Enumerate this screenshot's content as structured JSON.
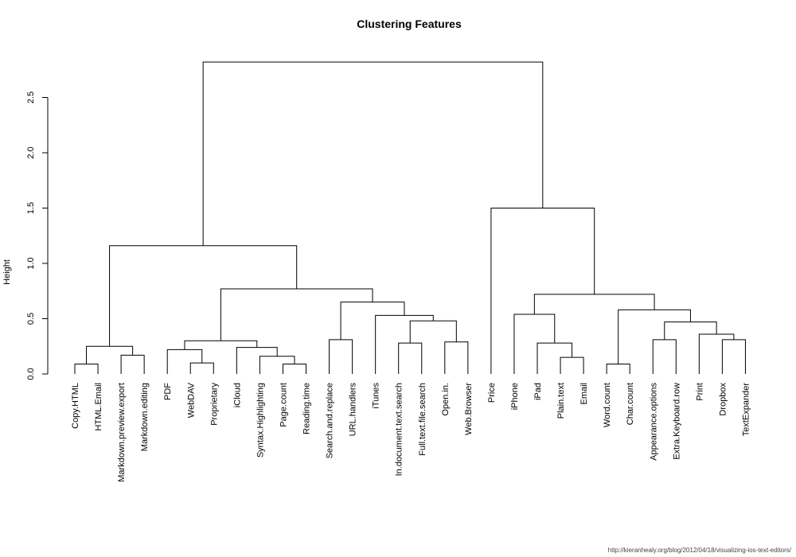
{
  "chart_data": {
    "type": "dendrogram",
    "title": "Clustering Features",
    "ylabel": "Height",
    "ylim": [
      0,
      2.85
    ],
    "yticks": [
      "0.0",
      "0.5",
      "1.0",
      "1.5",
      "2.0",
      "2.5"
    ],
    "leaves": [
      "Copy.HTML",
      "HTML.Email",
      "Markdown.preview.export",
      "Markdown.editing",
      "PDF",
      "WebDAV",
      "Proprietary",
      "iCloud",
      "Syntax.Highlighting",
      "Page.count",
      "Reading.time",
      "Search.and.replace",
      "URL.handlers",
      "iTunes",
      "In.document.text.search",
      "Full.text.file.search",
      "Open.in.",
      "Web.Browser",
      "Price",
      "iPhone",
      "iPad",
      "Plain.text",
      "Email",
      "Word.count",
      "Char.count",
      "Appearance.options",
      "Extra.Keyboard.row",
      "Print",
      "Dropbox",
      "TextExpander"
    ],
    "merges": [
      {
        "a": [
          "leaf",
          0
        ],
        "b": [
          "leaf",
          1
        ],
        "height": 0.09
      },
      {
        "a": [
          "leaf",
          2
        ],
        "b": [
          "leaf",
          3
        ],
        "height": 0.17
      },
      {
        "a": [
          "node",
          0
        ],
        "b": [
          "node",
          1
        ],
        "height": 0.25
      },
      {
        "a": [
          "leaf",
          5
        ],
        "b": [
          "leaf",
          6
        ],
        "height": 0.1
      },
      {
        "a": [
          "leaf",
          4
        ],
        "b": [
          "node",
          3
        ],
        "height": 0.22
      },
      {
        "a": [
          "leaf",
          9
        ],
        "b": [
          "leaf",
          10
        ],
        "height": 0.09
      },
      {
        "a": [
          "leaf",
          8
        ],
        "b": [
          "node",
          5
        ],
        "height": 0.16
      },
      {
        "a": [
          "leaf",
          7
        ],
        "b": [
          "node",
          6
        ],
        "height": 0.24
      },
      {
        "a": [
          "node",
          4
        ],
        "b": [
          "node",
          7
        ],
        "height": 0.3
      },
      {
        "a": [
          "leaf",
          11
        ],
        "b": [
          "leaf",
          12
        ],
        "height": 0.31
      },
      {
        "a": [
          "leaf",
          14
        ],
        "b": [
          "leaf",
          15
        ],
        "height": 0.28
      },
      {
        "a": [
          "leaf",
          16
        ],
        "b": [
          "leaf",
          17
        ],
        "height": 0.29
      },
      {
        "a": [
          "node",
          10
        ],
        "b": [
          "node",
          11
        ],
        "height": 0.48
      },
      {
        "a": [
          "leaf",
          13
        ],
        "b": [
          "node",
          12
        ],
        "height": 0.53
      },
      {
        "a": [
          "node",
          9
        ],
        "b": [
          "node",
          13
        ],
        "height": 0.65
      },
      {
        "a": [
          "node",
          8
        ],
        "b": [
          "node",
          14
        ],
        "height": 0.77
      },
      {
        "a": [
          "node",
          2
        ],
        "b": [
          "node",
          15
        ],
        "height": 1.16
      },
      {
        "a": [
          "leaf",
          21
        ],
        "b": [
          "leaf",
          22
        ],
        "height": 0.15
      },
      {
        "a": [
          "leaf",
          20
        ],
        "b": [
          "node",
          17
        ],
        "height": 0.28
      },
      {
        "a": [
          "leaf",
          19
        ],
        "b": [
          "node",
          18
        ],
        "height": 0.54
      },
      {
        "a": [
          "leaf",
          23
        ],
        "b": [
          "leaf",
          24
        ],
        "height": 0.09
      },
      {
        "a": [
          "leaf",
          25
        ],
        "b": [
          "leaf",
          26
        ],
        "height": 0.31
      },
      {
        "a": [
          "leaf",
          28
        ],
        "b": [
          "leaf",
          29
        ],
        "height": 0.31
      },
      {
        "a": [
          "leaf",
          27
        ],
        "b": [
          "node",
          22
        ],
        "height": 0.36
      },
      {
        "a": [
          "node",
          21
        ],
        "b": [
          "node",
          23
        ],
        "height": 0.47
      },
      {
        "a": [
          "node",
          20
        ],
        "b": [
          "node",
          24
        ],
        "height": 0.58
      },
      {
        "a": [
          "node",
          19
        ],
        "b": [
          "node",
          25
        ],
        "height": 0.72
      },
      {
        "a": [
          "leaf",
          18
        ],
        "b": [
          "node",
          26
        ],
        "height": 1.5
      },
      {
        "a": [
          "node",
          16
        ],
        "b": [
          "node",
          27
        ],
        "height": 2.82
      }
    ],
    "grid": false,
    "legend": "none"
  },
  "footer": {
    "credit": "http://kieranhealy.org/blog/2012/04/18/visualizing-ios-text-editors/"
  }
}
